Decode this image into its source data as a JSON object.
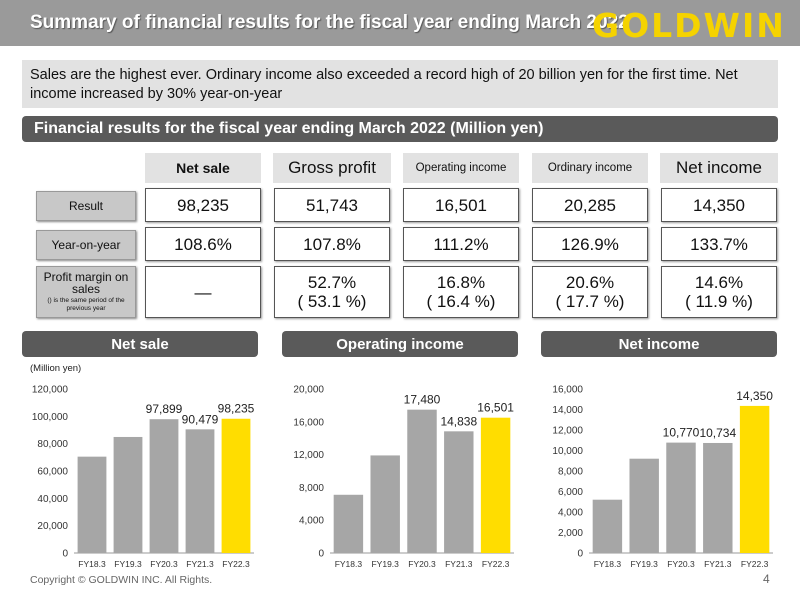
{
  "header": {
    "title": "Summary of financial results for the fiscal year ending March 2022",
    "logo_text": "GOLDWIN"
  },
  "summary": "Sales are the highest ever. Ordinary income also exceeded a record high of 20 billion yen for the first time. Net income increased by 30% year-on-year",
  "section_title": "Financial results for the fiscal year ending March 2022 (Million yen)",
  "table": {
    "columns": [
      "Net sale",
      "Gross profit",
      "Operating income",
      "Ordinary income",
      "Net income"
    ],
    "rows": [
      {
        "label": "Result",
        "note": "",
        "values": [
          [
            "98,235"
          ],
          [
            "51,743"
          ],
          [
            "16,501"
          ],
          [
            "20,285"
          ],
          [
            "14,350"
          ]
        ]
      },
      {
        "label": "Year-on-year",
        "note": "",
        "values": [
          [
            "108.6%"
          ],
          [
            "107.8%"
          ],
          [
            "111.2%"
          ],
          [
            "126.9%"
          ],
          [
            "133.7%"
          ]
        ]
      },
      {
        "label": "Profit margin on sales",
        "note": "() is the same period of the previous year",
        "values": [
          [
            "—"
          ],
          [
            "52.7%",
            "( 53.1 %)"
          ],
          [
            "16.8%",
            "( 16.4 %)"
          ],
          [
            "20.6%",
            "( 17.7 %)"
          ],
          [
            "14.6%",
            "( 11.9 %)"
          ]
        ]
      }
    ]
  },
  "colors": {
    "bar": "#a6a6a6",
    "highlight": "#ffdd00",
    "dark": "#5a5a5a"
  },
  "chart_data": [
    {
      "type": "bar",
      "title": "Net sale",
      "unit_label": "(Million yen)",
      "categories": [
        "FY18.3",
        "FY19.3",
        "FY20.3",
        "FY21.3",
        "FY22.3"
      ],
      "values": [
        70500,
        84900,
        97899,
        90479,
        98235
      ],
      "data_labels": [
        "",
        "",
        "97,899",
        "90,479",
        "98,235"
      ],
      "ylim": [
        0,
        120000
      ],
      "yticks": [
        0,
        20000,
        40000,
        60000,
        80000,
        100000,
        120000
      ],
      "ytick_labels": [
        "0",
        "20,000",
        "40,000",
        "60,000",
        "80,000",
        "100,000",
        "120,000"
      ],
      "highlight_index": 4
    },
    {
      "type": "bar",
      "title": "Operating income",
      "unit_label": "",
      "categories": [
        "FY18.3",
        "FY19.3",
        "FY20.3",
        "FY21.3",
        "FY22.3"
      ],
      "values": [
        7100,
        11900,
        17480,
        14838,
        16501
      ],
      "data_labels": [
        "",
        "",
        "17,480",
        "14,838",
        "16,501"
      ],
      "ylim": [
        0,
        20000
      ],
      "yticks": [
        0,
        4000,
        8000,
        12000,
        16000,
        20000
      ],
      "ytick_labels": [
        "0",
        "4,000",
        "8,000",
        "12,000",
        "16,000",
        "20,000"
      ],
      "highlight_index": 4
    },
    {
      "type": "bar",
      "title": "Net income",
      "unit_label": "",
      "categories": [
        "FY18.3",
        "FY19.3",
        "FY20.3",
        "FY21.3",
        "FY22.3"
      ],
      "values": [
        5200,
        9200,
        10770,
        10734,
        14350
      ],
      "data_labels": [
        "",
        "",
        "10,770",
        "10,734",
        "14,350"
      ],
      "ylim": [
        0,
        16000
      ],
      "yticks": [
        0,
        2000,
        4000,
        6000,
        8000,
        10000,
        12000,
        14000,
        16000
      ],
      "ytick_labels": [
        "0",
        "2,000",
        "4,000",
        "6,000",
        "8,000",
        "10,000",
        "12,000",
        "14,000",
        "16,000"
      ],
      "highlight_index": 4
    }
  ],
  "footer": {
    "copyright": "Copyright © GOLDWIN INC. All Rights.",
    "page": "4"
  }
}
